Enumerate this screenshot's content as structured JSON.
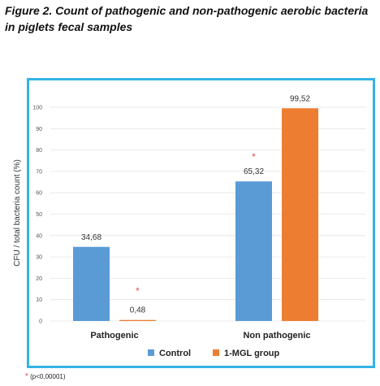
{
  "caption": "Figure 2.  Count of pathogenic and non-pathogenic aerobic bacteria in piglets fecal samples",
  "footnote": {
    "symbol": "*",
    "text": "(p<0,00001)"
  },
  "colors": {
    "control": "#5b9bd5",
    "mgl": "#ed7d31",
    "frame": "#35b2e6",
    "star": "#e05050",
    "grid": "#e4e4e4"
  },
  "chart_data": {
    "type": "bar",
    "title": "",
    "ylabel": "CFU / total bacteria count (%)",
    "xlabel": "",
    "ylim": [
      0,
      100
    ],
    "yticks": [
      0,
      10,
      20,
      30,
      40,
      50,
      60,
      70,
      80,
      90,
      100
    ],
    "grid": true,
    "legend_position": "bottom",
    "categories": [
      "Pathogenic",
      "Non pathogenic"
    ],
    "series": [
      {
        "name": "Control",
        "values": [
          34.68,
          65.32
        ],
        "labels": [
          "34,68",
          "65,32"
        ]
      },
      {
        "name": "1-MGL group",
        "values": [
          0.48,
          99.52
        ],
        "labels": [
          "0,48",
          "99,52"
        ]
      }
    ],
    "significance_markers": [
      {
        "category": "Pathogenic",
        "series": "1-MGL group",
        "symbol": "*"
      },
      {
        "category": "Non pathogenic",
        "series": "Control",
        "symbol": "*"
      }
    ]
  }
}
